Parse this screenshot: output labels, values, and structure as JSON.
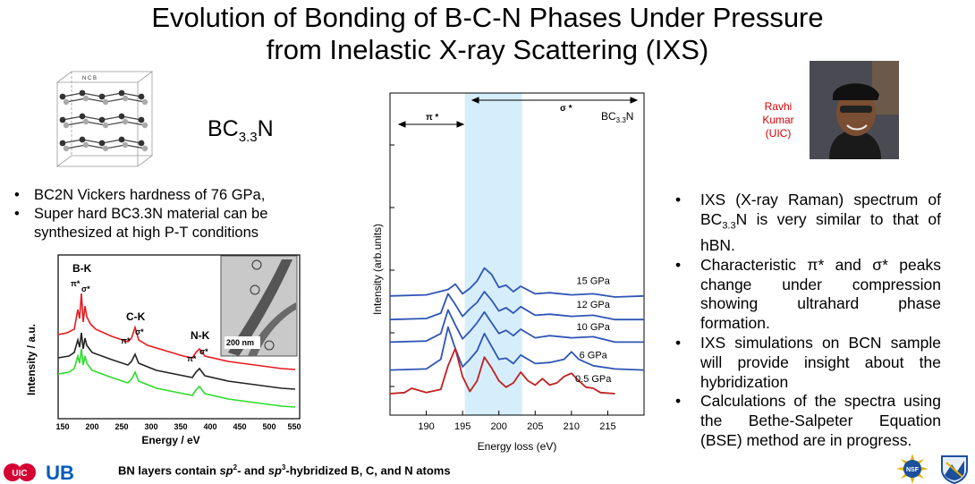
{
  "title": {
    "line1": "Evolution of Bonding of B-C-N Phases Under Pressure",
    "line2": "from Inelastic X-ray Scattering (IXS)"
  },
  "crystal": {
    "label": "N C B"
  },
  "formula": {
    "main": "BC",
    "sub": "3.3",
    "end": "N"
  },
  "left_bullets": [
    "BC2N Vickers hardness of 76 GPa,",
    "Super hard BC3.3N material can be synthesized at high P-T conditions"
  ],
  "eels_chart": {
    "ylabel": "Intensity / a.u.",
    "xlabel": "Energy / eV",
    "xticks": [
      "150",
      "200",
      "250",
      "300",
      "350",
      "400",
      "450",
      "500",
      "550"
    ],
    "edges": {
      "bk": "B-K",
      "ck": "C-K",
      "nk": "N-K"
    },
    "peaks": {
      "pi": "π*",
      "sigma": "σ*"
    },
    "inset_scale": "200 nm",
    "colors": {
      "red": "#e8191e",
      "black": "#222222",
      "green": "#2bdc2b"
    }
  },
  "chart_data": {
    "type": "line",
    "title": "BC3.3N",
    "xlabel": "Energy loss (eV)",
    "ylabel": "Intensity (arb.units)",
    "xlim": [
      185,
      220
    ],
    "xticks": [
      190,
      195,
      200,
      205,
      210,
      215
    ],
    "shaded_band": [
      195.3,
      203.2
    ],
    "annotations": {
      "pi": "π *",
      "sigma": "σ *"
    },
    "series": [
      {
        "name": "15 GPa",
        "color": "#2f55b5",
        "offset": 4.55,
        "x": [
          185,
          190,
          193,
          194,
          195,
          196,
          197,
          198,
          199,
          200,
          201,
          202,
          203,
          205,
          207,
          210,
          213,
          216,
          220
        ],
        "y": [
          0.0,
          0.05,
          0.3,
          0.55,
          0.1,
          0.35,
          0.7,
          1.3,
          1.0,
          0.4,
          0.5,
          0.2,
          0.45,
          0.1,
          0.15,
          0.05,
          0.1,
          -0.05,
          0.0
        ]
      },
      {
        "name": "12 GPa",
        "color": "#2f55b5",
        "offset": 3.45,
        "x": [
          185,
          190,
          192,
          193,
          194,
          195,
          196,
          197,
          198,
          199,
          200,
          201,
          202,
          203,
          205,
          207,
          210,
          213,
          216,
          220
        ],
        "y": [
          0.0,
          0.05,
          0.3,
          1.2,
          0.7,
          0.15,
          0.5,
          0.8,
          1.3,
          0.9,
          0.4,
          0.55,
          0.3,
          0.6,
          0.2,
          0.25,
          0.15,
          0.2,
          0.0,
          0.0
        ]
      },
      {
        "name": "10 GPa",
        "color": "#2f55b5",
        "offset": 2.4,
        "x": [
          185,
          190,
          192,
          193,
          194,
          195,
          196,
          197,
          198,
          199,
          200,
          201,
          202,
          203,
          205,
          207,
          210,
          213,
          216,
          220
        ],
        "y": [
          0.0,
          0.05,
          0.4,
          1.5,
          0.8,
          0.15,
          0.5,
          0.9,
          1.4,
          0.9,
          0.4,
          0.55,
          0.3,
          0.6,
          0.2,
          0.3,
          0.2,
          0.25,
          0.0,
          0.0
        ]
      },
      {
        "name": "6 GPa",
        "color": "#2f55b5",
        "offset": 1.1,
        "x": [
          185,
          190,
          192,
          193,
          194,
          195,
          196,
          197,
          198,
          199,
          200,
          201,
          202,
          203,
          205,
          207,
          209,
          210,
          211,
          213,
          216,
          220
        ],
        "y": [
          0.0,
          0.05,
          0.5,
          2.0,
          1.0,
          0.15,
          0.5,
          0.9,
          1.7,
          1.1,
          0.5,
          0.55,
          0.3,
          0.7,
          0.3,
          0.35,
          0.5,
          0.85,
          0.5,
          0.2,
          0.05,
          0.0
        ]
      },
      {
        "name": "0.5 GPa",
        "color": "#c02020",
        "offset": 0.0,
        "x": [
          185,
          187,
          188,
          190,
          192,
          193,
          194,
          195,
          196,
          197,
          198,
          199,
          200,
          201,
          202,
          203,
          204,
          205,
          206,
          207,
          208,
          209,
          210,
          211,
          212,
          213,
          214,
          216
        ],
        "y": [
          0.0,
          0.05,
          0.25,
          0.05,
          0.2,
          1.3,
          2.1,
          0.8,
          0.1,
          0.6,
          1.7,
          1.2,
          0.6,
          0.3,
          0.5,
          1.0,
          0.6,
          0.4,
          0.7,
          0.4,
          0.5,
          0.8,
          0.95,
          0.6,
          0.3,
          0.25,
          0.05,
          0.0
        ]
      }
    ]
  },
  "author": {
    "line1": "Ravhi",
    "line2": "Kumar",
    "line3": "(UIC)"
  },
  "right_bullets": {
    "b1_pre": "IXS (X-ray Raman) spectrum of BC",
    "b1_sub": "3.3",
    "b1_post": "N is very similar to that of hBN.",
    "b2": "Characteristic π* and σ* peaks change under compression showing ultrahard phase formation.",
    "b3": "IXS simulations on BCN sample will provide insight about the hybridization",
    "b4": "Calculations of the spectra using the Bethe-Salpeter Equation (BSE) method are in progress."
  },
  "footer": {
    "p1": "BN layers contain ",
    "sp": "sp",
    "s2": "2",
    "p2": "- and ",
    "s3": "3",
    "p3": "-hybridized B, C, and N atoms"
  },
  "logos": {
    "uic": "UIC",
    "ub": "UB",
    "nsf": "NSF"
  }
}
